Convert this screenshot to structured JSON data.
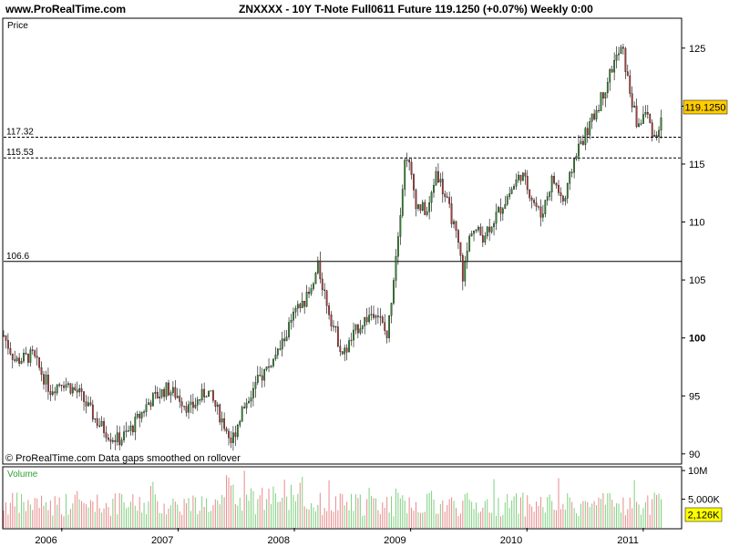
{
  "header": {
    "site": "www.ProRealTime.com",
    "title": "ZNXXXX - 10Y T-Note Full0611 Future    119.1250 (+0.07%)    Weekly  0:00"
  },
  "labels": {
    "price": "Price",
    "volume": "Volume",
    "copyright": "© ProRealTime.com  Data gaps smoothed on rollover",
    "last_price": "119.1250",
    "last_volume": "2,126K"
  },
  "colors": {
    "up": "#2f8a2f",
    "down": "#b23a3a",
    "volume_up": "#7fd07f",
    "volume_down": "#e88a8a",
    "price_tag": "#ffcc00",
    "volume_tag": "#ffff00"
  },
  "chart_data": {
    "type": "candlestick",
    "price_axis": {
      "ylim": [
        89.2,
        127.5
      ],
      "ticks": [
        90,
        95,
        100,
        105,
        110,
        115,
        120,
        125
      ]
    },
    "x_axis": {
      "xlim": [
        2005.5,
        2011.33
      ],
      "ticks": [
        "2006",
        "2007",
        "2008",
        "2009",
        "2010",
        "2011"
      ]
    },
    "volume_axis": {
      "ylim": [
        0,
        10500
      ],
      "ticks": [
        "10M",
        "5,000K"
      ]
    },
    "levels": [
      {
        "label": "117.32",
        "value": 117.32,
        "style": "dashed"
      },
      {
        "label": "115.53",
        "value": 115.53,
        "style": "dashed"
      },
      {
        "label": "106.6",
        "value": 106.6,
        "style": "solid"
      }
    ],
    "trend": [
      [
        2005.5,
        100.2
      ],
      [
        2005.6,
        98.0
      ],
      [
        2005.75,
        98.5
      ],
      [
        2005.9,
        95.5
      ],
      [
        2006.0,
        96.3
      ],
      [
        2006.15,
        95.2
      ],
      [
        2006.3,
        92.8
      ],
      [
        2006.42,
        91.5
      ],
      [
        2006.5,
        91.2
      ],
      [
        2006.6,
        92.2
      ],
      [
        2006.75,
        94.5
      ],
      [
        2006.9,
        95.6
      ],
      [
        2007.0,
        95.0
      ],
      [
        2007.1,
        93.8
      ],
      [
        2007.25,
        95.5
      ],
      [
        2007.4,
        92.5
      ],
      [
        2007.46,
        91.0
      ],
      [
        2007.55,
        93.8
      ],
      [
        2007.7,
        96.5
      ],
      [
        2007.85,
        98.5
      ],
      [
        2008.0,
        102.0
      ],
      [
        2008.15,
        104.0
      ],
      [
        2008.2,
        106.2
      ],
      [
        2008.32,
        101.5
      ],
      [
        2008.42,
        98.5
      ],
      [
        2008.55,
        101.0
      ],
      [
        2008.7,
        102.5
      ],
      [
        2008.8,
        100.0
      ],
      [
        2008.85,
        105.0
      ],
      [
        2008.92,
        112.0
      ],
      [
        2008.96,
        116.3
      ],
      [
        2009.05,
        111.5
      ],
      [
        2009.15,
        110.8
      ],
      [
        2009.22,
        114.5
      ],
      [
        2009.35,
        110.5
      ],
      [
        2009.42,
        107.5
      ],
      [
        2009.45,
        105.2
      ],
      [
        2009.52,
        109.5
      ],
      [
        2009.62,
        108.8
      ],
      [
        2009.72,
        110.3
      ],
      [
        2009.85,
        112.5
      ],
      [
        2009.95,
        114.2
      ],
      [
        2010.05,
        112.0
      ],
      [
        2010.12,
        110.5
      ],
      [
        2010.22,
        113.8
      ],
      [
        2010.32,
        111.6
      ],
      [
        2010.42,
        116.0
      ],
      [
        2010.55,
        118.5
      ],
      [
        2010.65,
        121.0
      ],
      [
        2010.75,
        123.8
      ],
      [
        2010.82,
        125.0
      ],
      [
        2010.87,
        122.0
      ],
      [
        2010.95,
        118.2
      ],
      [
        2011.02,
        119.5
      ],
      [
        2011.1,
        117.3
      ],
      [
        2011.17,
        119.1
      ]
    ]
  }
}
